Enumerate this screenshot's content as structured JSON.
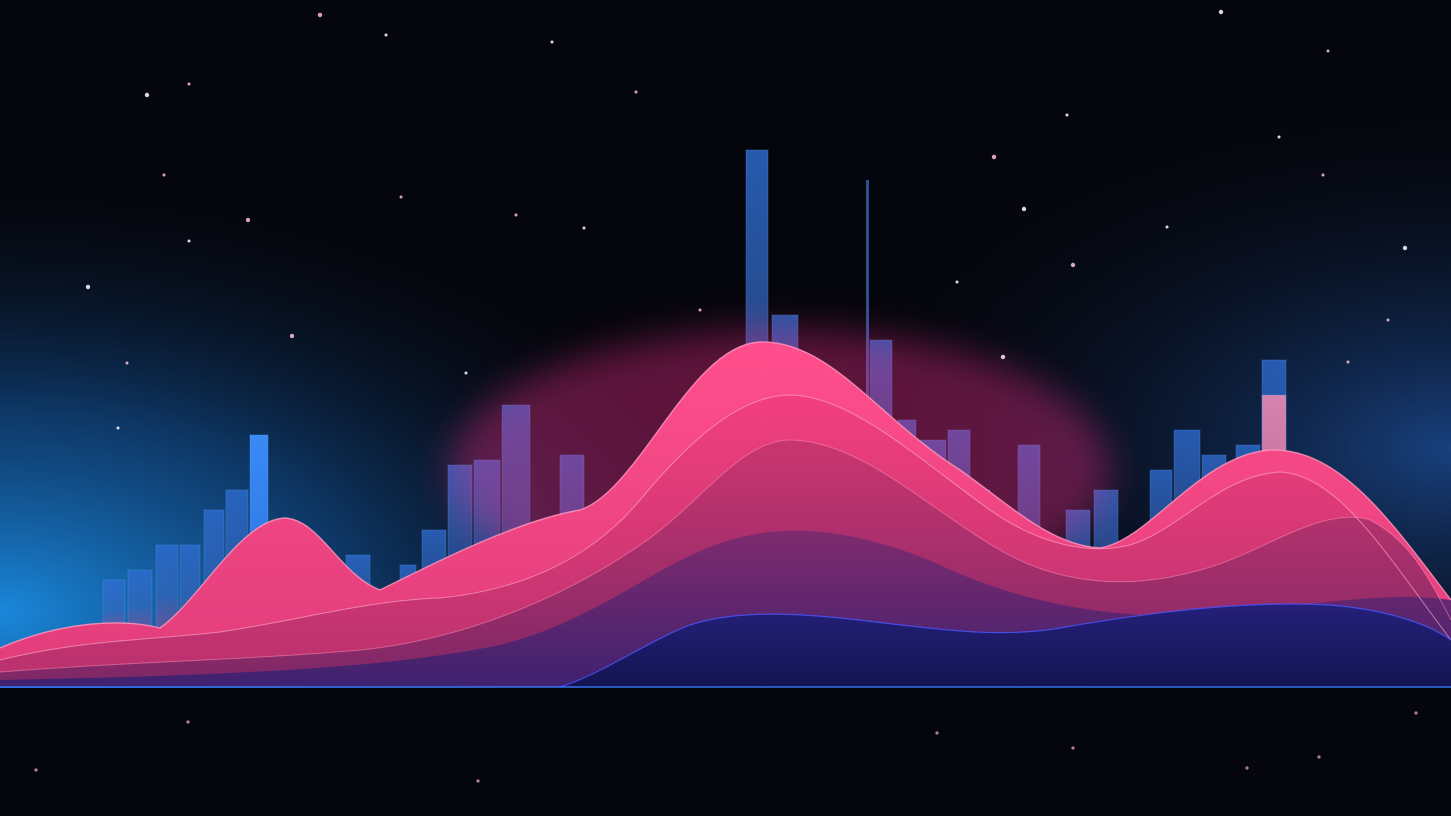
{
  "colors": {
    "background_top": "#05060d",
    "background_glow_left": "#1b8fe6",
    "bar_blue": "#2f6fd6",
    "bar_blue_bright": "#3d8fff",
    "bar_pink": "#ff7fa6",
    "wave_pink": "#ff3d7f",
    "wave_magenta": "#e0407a",
    "wave_purple": "#5a2a8a",
    "wave_navy": "#1b1f6e",
    "baseline": "#3a7bff",
    "star": "#ffb3d1"
  },
  "chart_data": {
    "type": "bar",
    "note_visible_text": "",
    "bars": [
      {
        "value": 0.1,
        "tone": "blue"
      },
      {
        "value": 0.12,
        "tone": "blue"
      },
      {
        "value": 0.17,
        "tone": "blue"
      },
      {
        "value": 0.17,
        "tone": "blue"
      },
      {
        "value": 0.24,
        "tone": "blue"
      },
      {
        "value": 0.28,
        "tone": "blue"
      },
      {
        "value": 0.39,
        "tone": "bright"
      },
      {
        "value": 0.06,
        "tone": "blue"
      },
      {
        "value": 0.11,
        "tone": "blue"
      },
      {
        "value": 0.15,
        "tone": "blue"
      },
      {
        "value": 0.13,
        "tone": "blue"
      },
      {
        "value": 0.2,
        "tone": "blue"
      },
      {
        "value": 0.33,
        "tone": "blue"
      },
      {
        "value": 0.34,
        "tone": "blue"
      },
      {
        "value": 0.45,
        "tone": "blue"
      },
      {
        "value": 0.35,
        "tone": "blue"
      },
      {
        "value": 0.15,
        "tone": "blue"
      },
      {
        "value": 0.2,
        "tone": "blue"
      },
      {
        "value": 0.39,
        "tone": "blue"
      },
      {
        "value": 0.44,
        "tone": "blue"
      },
      {
        "value": 0.48,
        "tone": "blue"
      },
      {
        "value": 0.63,
        "tone": "blue"
      },
      {
        "value": 0.49,
        "tone": "blue"
      },
      {
        "value": 0.46,
        "tone": "blue"
      },
      {
        "value": 0.58,
        "tone": "blue"
      },
      {
        "value": 0.42,
        "tone": "blue"
      },
      {
        "value": 0.38,
        "tone": "blue"
      },
      {
        "value": 0.4,
        "tone": "blue"
      },
      {
        "value": 0.28,
        "tone": "blue"
      },
      {
        "value": 0.37,
        "tone": "blue"
      },
      {
        "value": 0.24,
        "tone": "blue"
      },
      {
        "value": 0.28,
        "tone": "blue"
      },
      {
        "value": 0.32,
        "tone": "blue"
      },
      {
        "value": 0.4,
        "tone": "blue"
      },
      {
        "value": 0.35,
        "tone": "blue"
      },
      {
        "value": 0.37,
        "tone": "blue"
      },
      {
        "value": 0.54,
        "tone": "blue"
      },
      {
        "value": 0.47,
        "tone": "pink"
      }
    ],
    "waves": 5
  }
}
